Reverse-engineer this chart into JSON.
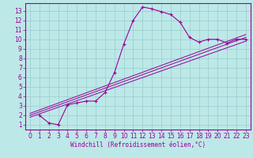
{
  "xlabel": "Windchill (Refroidissement éolien,°C)",
  "bg_color": "#bde8e8",
  "grid_color": "#99cccc",
  "line_color": "#990099",
  "x_ticks": [
    0,
    1,
    2,
    3,
    4,
    5,
    6,
    7,
    8,
    9,
    10,
    11,
    12,
    13,
    14,
    15,
    16,
    17,
    18,
    19,
    20,
    21,
    22,
    23
  ],
  "y_ticks": [
    1,
    2,
    3,
    4,
    5,
    6,
    7,
    8,
    9,
    10,
    11,
    12,
    13
  ],
  "xlim": [
    -0.5,
    23.5
  ],
  "ylim": [
    0.5,
    13.8
  ],
  "main_line_x": [
    1,
    2,
    3,
    4,
    5,
    6,
    7,
    8,
    9,
    10,
    11,
    12,
    13,
    14,
    15,
    16,
    17,
    18,
    19,
    20,
    21,
    22,
    23
  ],
  "main_line_y": [
    2.0,
    1.2,
    1.0,
    3.1,
    3.3,
    3.5,
    3.5,
    4.4,
    6.5,
    9.5,
    12.0,
    13.4,
    13.2,
    12.9,
    12.6,
    11.8,
    10.2,
    9.7,
    10.0,
    10.0,
    9.6,
    10.0,
    10.0
  ],
  "diag_line1_x": [
    0,
    23
  ],
  "diag_line1_y": [
    1.8,
    9.8
  ],
  "diag_line2_x": [
    0,
    23
  ],
  "diag_line2_y": [
    2.0,
    10.2
  ],
  "diag_line3_x": [
    0,
    23
  ],
  "diag_line3_y": [
    2.2,
    10.5
  ],
  "tick_fontsize": 5.5,
  "xlabel_fontsize": 5.5
}
